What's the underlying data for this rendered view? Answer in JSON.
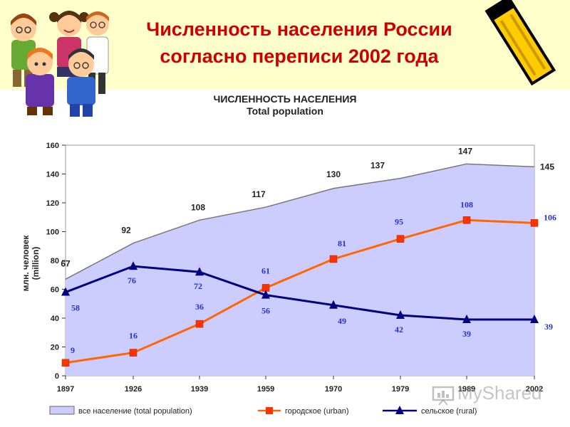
{
  "page": {
    "title_line1": "Численность населения России",
    "title_line2": "согласно переписи 2002 года",
    "watermark": "MyShared"
  },
  "chart_data": {
    "type": "area+line",
    "title": "ЧИСЛЕННОСТЬ НАСЕЛЕНИЯ",
    "subtitle": "Total population",
    "ylabel_line1": "млн. человек",
    "ylabel_line2": "(million)",
    "categories": [
      "1897",
      "1926",
      "1939",
      "1959",
      "1970",
      "1979",
      "1989",
      "2002"
    ],
    "ylim": [
      0,
      160
    ],
    "yticks": [
      0,
      20,
      40,
      60,
      80,
      100,
      120,
      140,
      160
    ],
    "series": [
      {
        "name": "все население",
        "name_en": "(total population)",
        "kind": "area",
        "color": "#ccccff",
        "line": "#777777",
        "values": [
          67,
          92,
          108,
          117,
          130,
          137,
          147,
          145
        ]
      },
      {
        "name": "городское",
        "name_en": "(urban)",
        "kind": "line",
        "marker": "square",
        "color": "#ff6600",
        "values": [
          9,
          16,
          36,
          61,
          81,
          95,
          108,
          106
        ]
      },
      {
        "name": "сельское",
        "name_en": "(rural)",
        "kind": "line",
        "marker": "triangle",
        "color": "#000080",
        "values": [
          58,
          76,
          72,
          56,
          49,
          42,
          39,
          39
        ]
      }
    ],
    "grid": false,
    "legend_position": "bottom"
  },
  "icons": [
    "children-clipart-icon",
    "pencil-clipart-icon",
    "presentation-icon"
  ]
}
